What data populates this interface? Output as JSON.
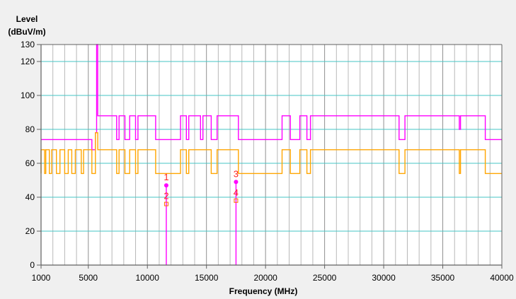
{
  "chart_data": {
    "type": "line",
    "ylabel_line1": "Level",
    "ylabel_line2": "(dBuV/m)",
    "xlabel": "Frequency (MHz)",
    "xlim": [
      1000,
      40000
    ],
    "ylim": [
      0,
      130
    ],
    "x_scale": "linear",
    "grid": "on",
    "y_ticks": [
      0,
      20,
      40,
      60,
      80,
      100,
      120,
      130
    ],
    "x_ticks": [
      1000,
      5000,
      10000,
      15000,
      20000,
      25000,
      30000,
      35000,
      40000
    ],
    "colors": {
      "plot_bg": "#ffffff",
      "outer_bg": "#f0f0f0",
      "h_grid": "#44c6c6",
      "v_grid": "#b8b8b8",
      "axis": "#606060",
      "limit_line": "#ff00ff",
      "measured_line": "#ffa500",
      "marker_label": "#ff2020"
    },
    "series": [
      {
        "color": "#ff00ff",
        "values": [
          [
            1000,
            74
          ],
          [
            5300,
            74
          ],
          [
            5300,
            68
          ],
          [
            5600,
            68
          ],
          [
            5600,
            78
          ],
          [
            5700,
            78
          ],
          [
            5700,
            130
          ],
          [
            5800,
            130
          ],
          [
            5800,
            88
          ],
          [
            6400,
            88
          ],
          [
            6400,
            88
          ],
          [
            7400,
            88
          ],
          [
            7400,
            74
          ],
          [
            7600,
            74
          ],
          [
            7600,
            88
          ],
          [
            8100,
            88
          ],
          [
            8100,
            74
          ],
          [
            8500,
            74
          ],
          [
            8500,
            88
          ],
          [
            9000,
            88
          ],
          [
            9000,
            74
          ],
          [
            9200,
            74
          ],
          [
            9200,
            88
          ],
          [
            9700,
            88
          ],
          [
            9700,
            88
          ],
          [
            10700,
            88
          ],
          [
            10700,
            74
          ],
          [
            12800,
            74
          ],
          [
            12800,
            88
          ],
          [
            13300,
            88
          ],
          [
            13300,
            74
          ],
          [
            13500,
            74
          ],
          [
            13500,
            88
          ],
          [
            14500,
            88
          ],
          [
            14500,
            74
          ],
          [
            14700,
            74
          ],
          [
            14700,
            88
          ],
          [
            15400,
            88
          ],
          [
            15400,
            74
          ],
          [
            15900,
            74
          ],
          [
            15900,
            88
          ],
          [
            17700,
            88
          ],
          [
            17700,
            74
          ],
          [
            21400,
            74
          ],
          [
            21400,
            88
          ],
          [
            22100,
            88
          ],
          [
            22100,
            74
          ],
          [
            22900,
            74
          ],
          [
            22900,
            88
          ],
          [
            23500,
            88
          ],
          [
            23500,
            74
          ],
          [
            23800,
            74
          ],
          [
            23800,
            88
          ],
          [
            31300,
            88
          ],
          [
            31300,
            74
          ],
          [
            31800,
            74
          ],
          [
            31800,
            88
          ],
          [
            36400,
            88
          ],
          [
            36400,
            80
          ],
          [
            36500,
            80
          ],
          [
            36500,
            88
          ],
          [
            38600,
            88
          ],
          [
            38600,
            74
          ],
          [
            40000,
            74
          ]
        ]
      },
      {
        "color": "#ffa500",
        "values": [
          [
            1000,
            54
          ],
          [
            1000,
            68
          ],
          [
            1300,
            68
          ],
          [
            1300,
            54
          ],
          [
            1400,
            54
          ],
          [
            1400,
            68
          ],
          [
            1700,
            68
          ],
          [
            1700,
            54
          ],
          [
            1900,
            54
          ],
          [
            1900,
            68
          ],
          [
            2300,
            68
          ],
          [
            2300,
            54
          ],
          [
            2600,
            54
          ],
          [
            2600,
            68
          ],
          [
            3000,
            68
          ],
          [
            3000,
            54
          ],
          [
            3300,
            54
          ],
          [
            3300,
            68
          ],
          [
            3600,
            68
          ],
          [
            3600,
            54
          ],
          [
            3900,
            54
          ],
          [
            3900,
            68
          ],
          [
            4400,
            68
          ],
          [
            4400,
            54
          ],
          [
            4600,
            54
          ],
          [
            4600,
            68
          ],
          [
            5300,
            68
          ],
          [
            5300,
            54
          ],
          [
            5600,
            54
          ],
          [
            5600,
            78
          ],
          [
            5800,
            78
          ],
          [
            5800,
            68
          ],
          [
            7400,
            68
          ],
          [
            7400,
            54
          ],
          [
            7600,
            54
          ],
          [
            7600,
            68
          ],
          [
            8100,
            68
          ],
          [
            8100,
            54
          ],
          [
            8500,
            54
          ],
          [
            8500,
            68
          ],
          [
            9000,
            68
          ],
          [
            9000,
            54
          ],
          [
            9200,
            54
          ],
          [
            9200,
            68
          ],
          [
            10700,
            68
          ],
          [
            10700,
            54
          ],
          [
            12800,
            54
          ],
          [
            12800,
            68
          ],
          [
            13300,
            68
          ],
          [
            13300,
            54
          ],
          [
            13500,
            54
          ],
          [
            13500,
            68
          ],
          [
            15400,
            68
          ],
          [
            15400,
            54
          ],
          [
            15900,
            54
          ],
          [
            15900,
            68
          ],
          [
            17700,
            68
          ],
          [
            17700,
            54
          ],
          [
            21400,
            54
          ],
          [
            21400,
            68
          ],
          [
            22100,
            68
          ],
          [
            22100,
            54
          ],
          [
            22900,
            54
          ],
          [
            22900,
            68
          ],
          [
            23500,
            68
          ],
          [
            23500,
            54
          ],
          [
            23800,
            54
          ],
          [
            23800,
            68
          ],
          [
            31300,
            68
          ],
          [
            31300,
            54
          ],
          [
            31800,
            54
          ],
          [
            31800,
            68
          ],
          [
            36400,
            68
          ],
          [
            36400,
            54
          ],
          [
            36500,
            54
          ],
          [
            36500,
            68
          ],
          [
            38600,
            68
          ],
          [
            38600,
            54
          ],
          [
            40000,
            54
          ]
        ]
      }
    ],
    "spike_sticks": [
      {
        "x": 11600,
        "from": 0,
        "to": 47,
        "color": "#ff00ff"
      },
      {
        "x": 17500,
        "from": 0,
        "to": 49,
        "color": "#ff00ff"
      }
    ],
    "markers": [
      {
        "label": "1",
        "x": 11600,
        "y": 47,
        "shape": "dot",
        "color": "#ff00ff"
      },
      {
        "label": "2",
        "x": 11600,
        "y": 36,
        "shape": "square",
        "color": "#ff6a00"
      },
      {
        "label": "3",
        "x": 17500,
        "y": 49,
        "shape": "dot",
        "color": "#ff00ff"
      },
      {
        "label": "4",
        "x": 17500,
        "y": 38,
        "shape": "square",
        "color": "#ff6a00"
      }
    ]
  }
}
